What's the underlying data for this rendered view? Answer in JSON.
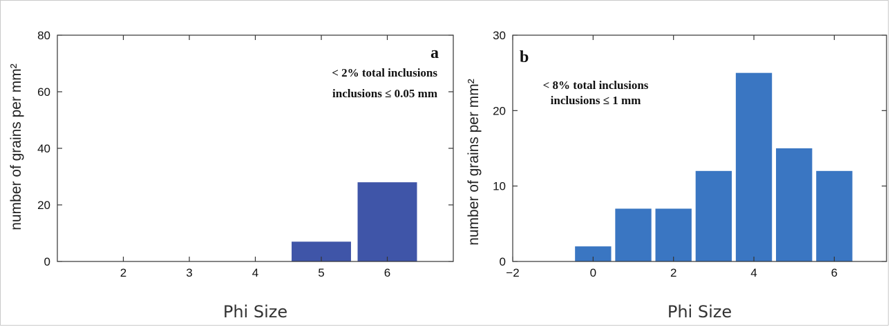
{
  "chart_data": [
    {
      "type": "bar",
      "panel_label": "a",
      "annotation": [
        "< 2% total inclusions",
        "inclusions ≤ 0.05 mm"
      ],
      "xlabel": "Phi Size",
      "ylabel": "number of grains per mm²",
      "xlim": [
        1,
        7
      ],
      "ylim": [
        0,
        80
      ],
      "xticks": [
        2,
        3,
        4,
        5,
        6
      ],
      "yticks": [
        0,
        20,
        40,
        60,
        80
      ],
      "x": [
        5,
        6
      ],
      "values": [
        7,
        28
      ],
      "bar_width": 0.9,
      "color": "#3f55a8",
      "grid": false
    },
    {
      "type": "bar",
      "panel_label": "b",
      "annotation": [
        "< 8% total inclusions",
        "inclusions ≤ 1 mm"
      ],
      "xlabel": "Phi Size",
      "ylabel": "number of grains per mm²",
      "xlim": [
        -2,
        7.3
      ],
      "ylim": [
        0,
        30
      ],
      "xticks": [
        -2,
        0,
        2,
        4,
        6
      ],
      "xtick_labels": [
        "−2",
        "0",
        "2",
        "4",
        "6"
      ],
      "yticks": [
        0,
        10,
        20,
        30
      ],
      "x": [
        0,
        1,
        2,
        3,
        4,
        5,
        6
      ],
      "values": [
        2,
        7,
        7,
        12,
        25,
        15,
        12
      ],
      "bar_width": 0.9,
      "color": "#3a76c2",
      "grid": false
    }
  ]
}
